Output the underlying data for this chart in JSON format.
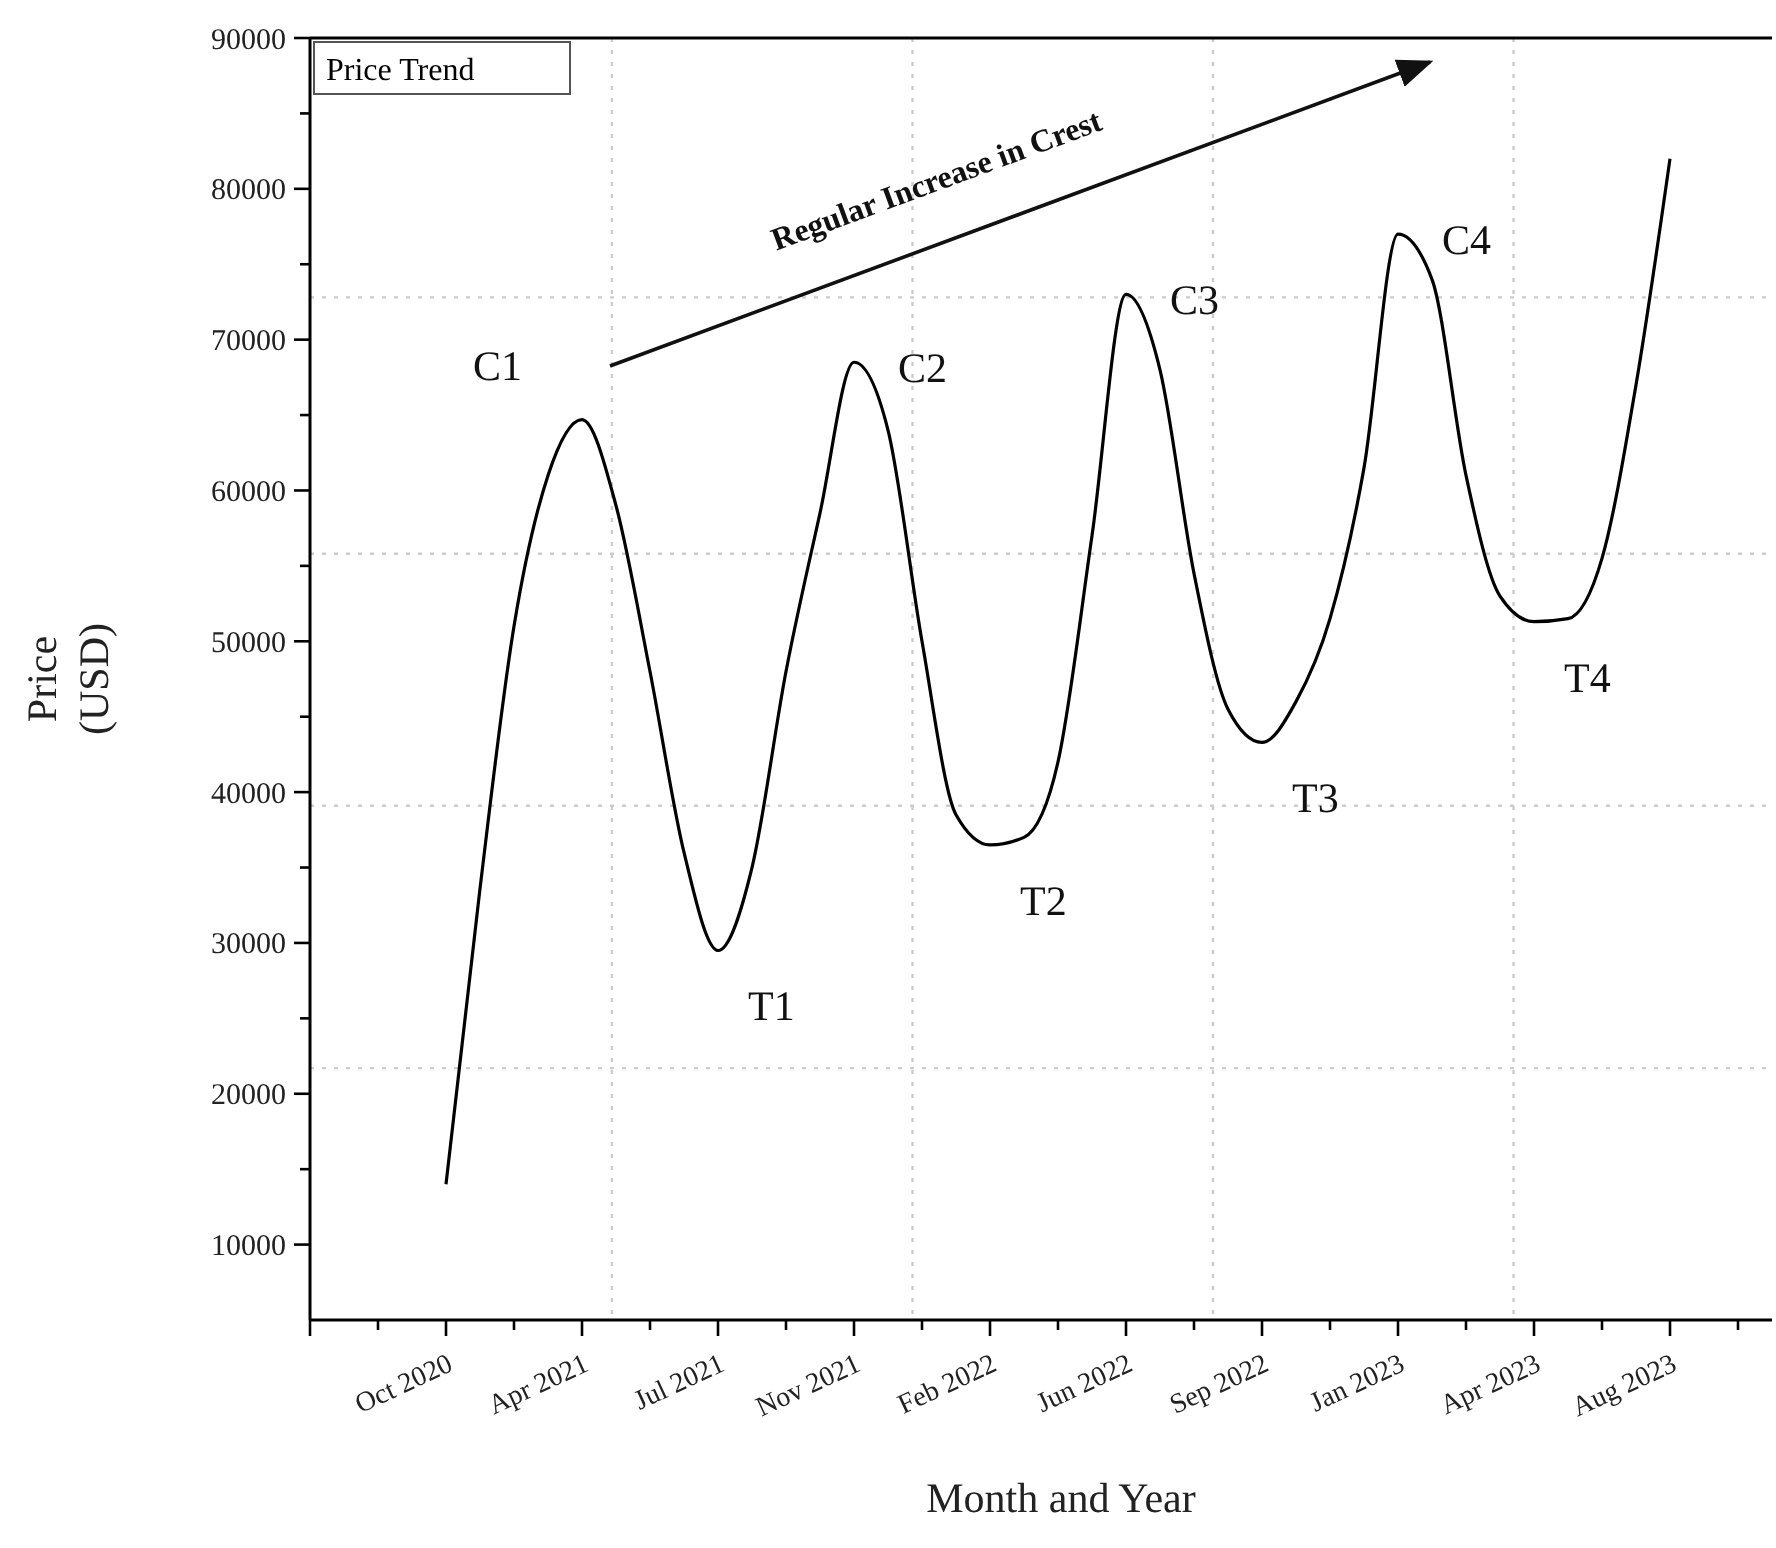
{
  "chart_data": {
    "type": "line",
    "xlabel": "Month and Year",
    "ylabel": "Price\n(USD)",
    "categories": [
      "Oct 2020",
      null,
      null,
      null,
      "Apr 2021",
      null,
      null,
      null,
      "Jul 2021",
      null,
      null,
      null,
      "Nov 2021",
      null,
      null,
      null,
      "Feb 2022",
      null,
      null,
      null,
      "Jun 2022",
      null,
      null,
      null,
      "Sep 2022",
      null,
      null,
      null,
      "Jan 2023",
      null,
      null,
      null,
      "Apr 2023",
      null,
      null,
      null,
      "Aug 2023"
    ],
    "ylim": [
      5000,
      90000
    ],
    "yticks": [
      10000,
      20000,
      30000,
      40000,
      50000,
      60000,
      70000,
      80000,
      90000
    ],
    "legend": "top left",
    "marker": "none",
    "line_style": "solid",
    "series": [
      {
        "name": "Price Trend",
        "color": "#000000",
        "values": [
          14000,
          33600,
          51000,
          61000,
          64700,
          59000,
          48000,
          36000,
          29500,
          35000,
          48000,
          58500,
          68500,
          64000,
          50000,
          38500,
          36500,
          37000,
          42000,
          57000,
          73000,
          68000,
          54500,
          45500,
          43300,
          46000,
          51500,
          61500,
          77000,
          74000,
          61000,
          53000,
          51300,
          51500,
          55500,
          67000,
          82000
        ]
      }
    ],
    "annotations": [
      {
        "text": "C1",
        "x": "Apr 2021",
        "y": 64700
      },
      {
        "text": "C2",
        "x": "Nov 2021",
        "y": 68500
      },
      {
        "text": "C3",
        "x": "Jun 2022",
        "y": 73000
      },
      {
        "text": "C4",
        "x": "Jan 2023",
        "y": 77000
      },
      {
        "text": "T1",
        "x": "Jul 2021",
        "y": 29500
      },
      {
        "text": "T2",
        "x": "Feb 2022",
        "y": 36500
      },
      {
        "text": "T3",
        "x": "Sep 2022",
        "y": 43300
      },
      {
        "text": "T4",
        "x": "Apr 2023",
        "y": 51300
      },
      "Regular Increase in Crest"
    ],
    "ref_lines": [
      {
        "axis": "y",
        "value": 72800,
        "label": null,
        "color": "#cccccc",
        "line_style": "dotted"
      },
      {
        "axis": "y",
        "value": 55800,
        "label": null,
        "color": "#cccccc",
        "line_style": "dotted"
      },
      {
        "axis": "y",
        "value": 39100,
        "label": null,
        "color": "#cccccc",
        "line_style": "dotted"
      },
      {
        "axis": "y",
        "value": 21700,
        "label": null,
        "color": "#cccccc",
        "line_style": "dotted"
      }
    ]
  }
}
